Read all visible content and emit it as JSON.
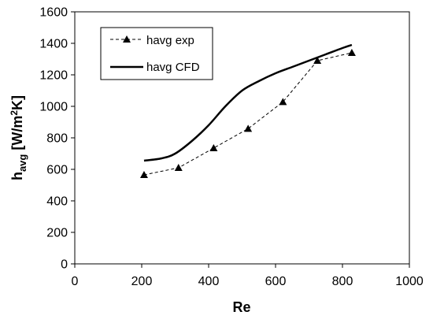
{
  "chart_data": {
    "type": "line",
    "xlabel": "Re",
    "ylabel": {
      "main": "h",
      "sub": "avg",
      "unit_open": " [W/m",
      "unit_sup": "2",
      "unit_close": "K]"
    },
    "xlim": [
      0,
      1000
    ],
    "ylim": [
      0,
      1600
    ],
    "xticks": [
      0,
      200,
      400,
      600,
      800,
      1000
    ],
    "yticks": [
      0,
      200,
      400,
      600,
      800,
      1000,
      1200,
      1400,
      1600
    ],
    "xtick_labels": [
      "0",
      "200",
      "400",
      "600",
      "800",
      "1000"
    ],
    "ytick_labels": [
      "0",
      "200",
      "400",
      "600",
      "800",
      "1000",
      "1200",
      "1400",
      "1600"
    ],
    "grid": false,
    "legend_position": "top-left",
    "series": [
      {
        "name": "havg exp",
        "style": "dashed-triangle",
        "color": "#000000",
        "x": [
          207,
          310,
          415,
          518,
          622,
          725,
          828
        ],
        "y": [
          565,
          610,
          735,
          858,
          1028,
          1290,
          1340
        ]
      },
      {
        "name": "havg CFD",
        "style": "solid",
        "color": "#000000",
        "x": [
          207,
          260,
          300,
          350,
          400,
          450,
          500,
          550,
          600,
          650,
          700,
          750,
          800,
          828
        ],
        "y": [
          655,
          670,
          700,
          780,
          880,
          1000,
          1100,
          1160,
          1210,
          1250,
          1290,
          1330,
          1370,
          1390
        ]
      }
    ]
  }
}
